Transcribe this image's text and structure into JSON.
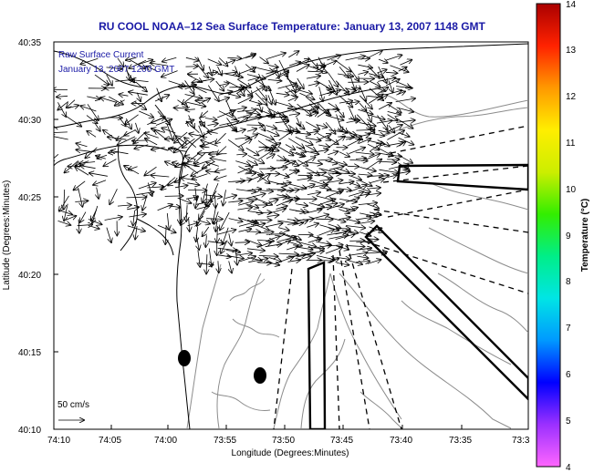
{
  "title": "RU COOL  NOAA–12  Sea Surface Temperature:  January 13, 2007 1148 GMT",
  "legend": {
    "line1": "Raw Surface Current",
    "line2": "January 13, 2007 1200 GMT",
    "scale_label": "50 cm/s"
  },
  "axes": {
    "xlabel": "Longitude (Degrees:Minutes)",
    "ylabel": "Latitude (Degrees:Minutes)",
    "x_ticks": [
      "74:10",
      "74:05",
      "74:00",
      "73:55",
      "73:50",
      "73:45",
      "73:40",
      "73:35",
      "73:3"
    ],
    "y_ticks": [
      "40:35",
      "40:30",
      "40:25",
      "40:20",
      "40:15",
      "40:10"
    ]
  },
  "colorbar": {
    "label": "Temperature (°C)",
    "min": 4,
    "max": 14,
    "ticks": [
      "14",
      "13",
      "12",
      "11",
      "10",
      "9",
      "8",
      "7",
      "6",
      "5",
      "4"
    ],
    "colors": [
      "#ff66ff",
      "#9b30ff",
      "#0000ff",
      "#0099ff",
      "#00e5e5",
      "#00ee88",
      "#33ee00",
      "#ccee00",
      "#ffee00",
      "#ff9900",
      "#ff2200",
      "#aa0000"
    ]
  },
  "colors": {
    "title": "#1a1aa6",
    "coast": "#000000",
    "bathymetry": "#888888"
  }
}
